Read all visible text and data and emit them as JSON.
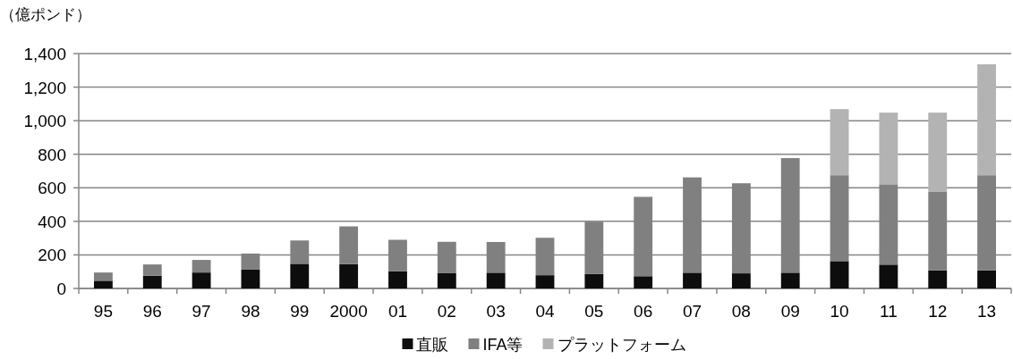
{
  "chart_data": {
    "type": "bar",
    "stacked": true,
    "ylabel": "（億ポンド）",
    "categories": [
      "95",
      "96",
      "97",
      "98",
      "99",
      "2000",
      "01",
      "02",
      "03",
      "04",
      "05",
      "06",
      "07",
      "08",
      "09",
      "10",
      "11",
      "12",
      "13"
    ],
    "series": [
      {
        "name": "直販",
        "color": "#0d0d0d",
        "values": [
          46,
          76,
          95,
          114,
          147,
          145,
          103,
          93,
          94,
          79,
          87,
          73,
          94,
          90,
          94,
          163,
          142,
          108,
          108
        ]
      },
      {
        "name": "IFA等",
        "color": "#808080",
        "values": [
          49,
          67,
          75,
          94,
          139,
          225,
          187,
          185,
          183,
          223,
          311,
          473,
          568,
          537,
          683,
          512,
          479,
          467,
          567
        ]
      },
      {
        "name": "プラットフォーム",
        "color": "#b3b3b3",
        "values": [
          null,
          null,
          null,
          null,
          null,
          null,
          null,
          null,
          null,
          null,
          null,
          null,
          null,
          null,
          null,
          394,
          427,
          473,
          661
        ]
      }
    ],
    "ylim": [
      0,
      1400
    ],
    "yticks": [
      0,
      200,
      400,
      600,
      800,
      {
        "value": 1000,
        "label": "1,000"
      },
      {
        "value": 1200,
        "label": "1,200"
      },
      {
        "value": 1400,
        "label": "1,400"
      }
    ],
    "grid": "y",
    "legend": "bottom"
  }
}
